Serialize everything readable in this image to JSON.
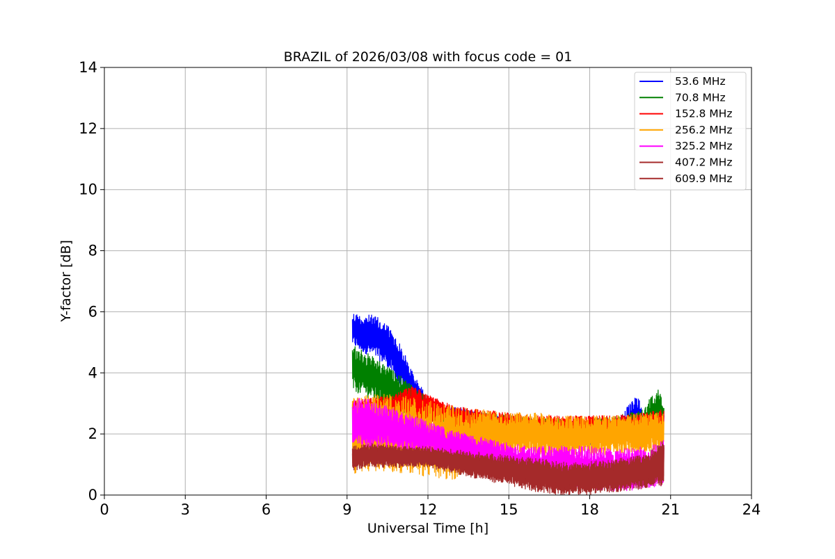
{
  "chart_data": {
    "type": "line",
    "title": "BRAZIL of 2026/03/08 with focus code = 01",
    "xlabel": "Universal Time [h]",
    "ylabel": "Y-factor [dB]",
    "xlim": [
      0,
      24
    ],
    "ylim": [
      0,
      14
    ],
    "xticks": [
      0,
      3,
      6,
      9,
      12,
      15,
      18,
      21,
      24
    ],
    "yticks": [
      0,
      2,
      4,
      6,
      8,
      10,
      12,
      14
    ],
    "grid": true,
    "legend_position": "top-right",
    "series": [
      {
        "name": "53.6 MHz",
        "color": "#0000ff",
        "x": [
          9.2,
          9.5,
          10.0,
          10.5,
          11.0,
          11.5,
          12.0,
          12.5,
          13.0,
          13.5,
          14.0,
          15.0,
          16.0,
          17.0,
          18.0,
          19.0,
          19.8,
          20.0,
          20.5,
          20.75
        ],
        "y_low": [
          4.9,
          4.7,
          4.5,
          4.2,
          3.4,
          2.9,
          2.6,
          2.5,
          2.4,
          2.3,
          2.2,
          1.9,
          1.7,
          1.6,
          1.6,
          1.7,
          1.8,
          1.9,
          2.0,
          2.1
        ],
        "y_high": [
          6.0,
          5.9,
          5.9,
          5.6,
          4.9,
          3.9,
          3.2,
          2.9,
          2.9,
          2.8,
          2.7,
          2.6,
          2.5,
          2.4,
          2.4,
          2.5,
          3.3,
          2.6,
          2.7,
          2.8
        ]
      },
      {
        "name": "70.8 MHz",
        "color": "#008000",
        "x": [
          9.2,
          9.5,
          10.0,
          10.5,
          11.0,
          11.5,
          12.0,
          12.5,
          13.0,
          14.0,
          15.0,
          16.0,
          17.0,
          18.0,
          19.0,
          20.0,
          20.5,
          20.75
        ],
        "y_low": [
          3.4,
          3.3,
          3.1,
          2.9,
          2.7,
          2.5,
          2.4,
          2.3,
          2.2,
          2.1,
          1.9,
          1.7,
          1.6,
          1.6,
          1.7,
          1.9,
          2.0,
          2.1
        ],
        "y_high": [
          4.9,
          4.8,
          4.5,
          4.2,
          3.9,
          3.5,
          3.2,
          3.0,
          2.8,
          2.7,
          2.6,
          2.5,
          2.5,
          2.5,
          2.6,
          2.8,
          3.6,
          3.0
        ]
      },
      {
        "name": "152.8 MHz",
        "color": "#ff0000",
        "x": [
          9.2,
          10.0,
          11.0,
          11.5,
          12.0,
          12.5,
          13.0,
          14.0,
          15.0,
          16.0,
          17.0,
          18.0,
          19.0,
          20.0,
          20.75
        ],
        "y_low": [
          2.5,
          2.5,
          2.5,
          2.4,
          2.3,
          2.3,
          2.2,
          2.1,
          1.9,
          1.8,
          1.7,
          1.7,
          1.7,
          1.9,
          2.0
        ],
        "y_high": [
          3.1,
          3.2,
          3.4,
          3.6,
          3.3,
          3.1,
          2.9,
          2.8,
          2.7,
          2.6,
          2.6,
          2.6,
          2.6,
          2.7,
          2.8
        ]
      },
      {
        "name": "256.2 MHz",
        "color": "#ffa500",
        "x": [
          9.2,
          10.0,
          11.0,
          12.0,
          12.5,
          13.0,
          14.0,
          15.0,
          16.0,
          17.0,
          18.0,
          19.0,
          20.0,
          20.75
        ],
        "y_low": [
          0.7,
          0.8,
          0.7,
          0.6,
          0.5,
          0.5,
          1.3,
          1.3,
          1.3,
          1.2,
          1.3,
          1.3,
          1.4,
          1.5
        ],
        "y_high": [
          3.2,
          3.3,
          3.3,
          3.1,
          3.0,
          2.9,
          2.8,
          2.7,
          2.7,
          2.6,
          2.6,
          2.6,
          2.7,
          2.7
        ]
      },
      {
        "name": "325.2 MHz",
        "color": "#ff00ff",
        "x": [
          9.2,
          10.0,
          11.0,
          12.0,
          13.0,
          14.0,
          15.0,
          16.0,
          17.0,
          18.0,
          19.0,
          20.0,
          20.75
        ],
        "y_low": [
          1.6,
          1.5,
          1.4,
          1.3,
          1.1,
          0.9,
          0.6,
          0.4,
          0.3,
          0.2,
          0.1,
          0.2,
          0.3
        ],
        "y_high": [
          3.2,
          3.1,
          2.8,
          2.4,
          2.1,
          1.9,
          1.7,
          1.6,
          1.6,
          1.6,
          1.5,
          1.6,
          1.8
        ]
      },
      {
        "name": "407.2 MHz",
        "color": "#a52a2a",
        "x": [
          9.2,
          10.0,
          11.0,
          12.0,
          13.0,
          14.0,
          15.0,
          16.0,
          17.0,
          18.0,
          19.0,
          20.0,
          20.75
        ],
        "y_low": [
          0.8,
          0.9,
          0.9,
          0.9,
          0.7,
          0.5,
          0.3,
          0.1,
          0.0,
          0.0,
          0.1,
          0.2,
          0.3
        ],
        "y_high": [
          1.6,
          1.7,
          1.6,
          1.6,
          1.5,
          1.4,
          1.3,
          1.2,
          1.1,
          1.1,
          1.2,
          1.3,
          1.8
        ]
      },
      {
        "name": "609.9 MHz",
        "color": "#a52a2a",
        "x": [
          9.2,
          10.0,
          11.0,
          12.0,
          13.0,
          14.0,
          15.0,
          16.0,
          17.0,
          18.0,
          19.0,
          20.0,
          20.75
        ],
        "y_low": [
          0.9,
          1.0,
          1.0,
          1.0,
          0.8,
          0.6,
          0.4,
          0.3,
          0.1,
          0.1,
          0.2,
          0.3,
          0.4
        ],
        "y_high": [
          1.5,
          1.6,
          1.6,
          1.5,
          1.4,
          1.3,
          1.2,
          1.1,
          1.0,
          1.0,
          1.1,
          1.2,
          1.7
        ]
      }
    ]
  }
}
